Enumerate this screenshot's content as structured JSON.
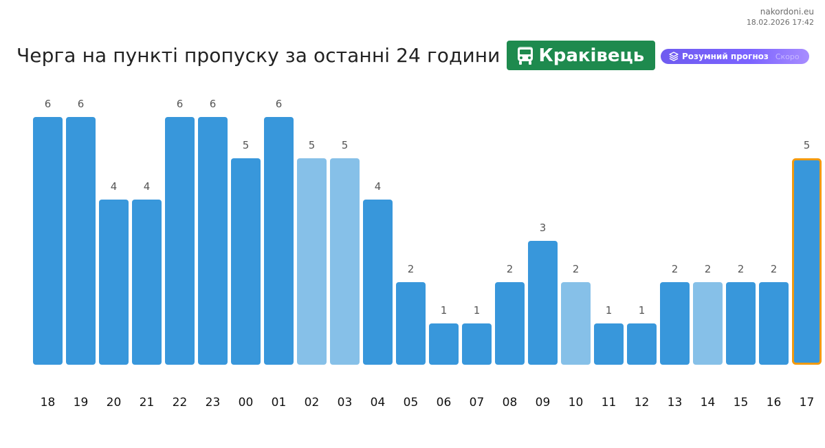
{
  "brand": {
    "site": "nakordoni.eu",
    "timestamp": "18.02.2026 17:42"
  },
  "header": {
    "title": "Черга на пункті пропуску за останні 24 години",
    "checkpoint_label": "Краківець",
    "forecast_label": "Розумний прогноз",
    "forecast_badge": "Скоро"
  },
  "colors": {
    "bar": "#3897db",
    "bar_light": "#86c0e8",
    "bar_highlight_border": "#f29a0e",
    "checkpoint_bg": "#1e8a4e",
    "forecast_bg": "#7b63ff"
  },
  "icons": {
    "checkpoint": "bus-icon",
    "forecast": "layers-icon"
  },
  "chart_data": {
    "type": "bar",
    "categories": [
      "18",
      "19",
      "20",
      "21",
      "22",
      "23",
      "00",
      "01",
      "02",
      "03",
      "04",
      "05",
      "06",
      "07",
      "08",
      "09",
      "10",
      "11",
      "12",
      "13",
      "14",
      "15",
      "16",
      "17"
    ],
    "values": [
      6,
      6,
      4,
      4,
      6,
      6,
      5,
      6,
      5,
      5,
      4,
      2,
      1,
      1,
      2,
      3,
      2,
      1,
      1,
      2,
      2,
      2,
      2,
      5
    ],
    "light_bars": [
      "02",
      "03",
      "10",
      "14"
    ],
    "highlighted_bar": "17",
    "ylim": [
      0,
      6
    ],
    "title": "",
    "xlabel": "",
    "ylabel": "",
    "grid": false,
    "data_labels": true
  }
}
